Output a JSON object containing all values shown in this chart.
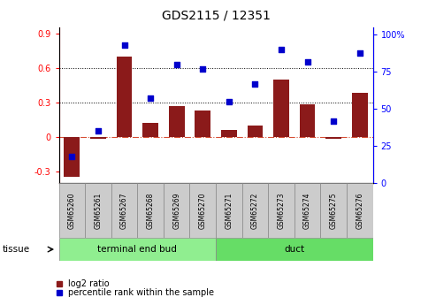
{
  "title": "GDS2115 / 12351",
  "samples": [
    "GSM65260",
    "GSM65261",
    "GSM65267",
    "GSM65268",
    "GSM65269",
    "GSM65270",
    "GSM65271",
    "GSM65272",
    "GSM65273",
    "GSM65274",
    "GSM65275",
    "GSM65276"
  ],
  "log2_ratio": [
    -0.35,
    -0.02,
    0.7,
    0.12,
    0.27,
    0.23,
    0.06,
    0.1,
    0.5,
    0.28,
    -0.02,
    0.38
  ],
  "percentile_rank": [
    18,
    35,
    93,
    57,
    80,
    77,
    55,
    67,
    90,
    82,
    42,
    88
  ],
  "tissue_groups": [
    {
      "label": "terminal end bud",
      "start": 0,
      "end": 6,
      "color": "#90EE90"
    },
    {
      "label": "duct",
      "start": 6,
      "end": 12,
      "color": "#66DD66"
    }
  ],
  "bar_color": "#8B1A1A",
  "dot_color": "#0000CC",
  "left_ylim": [
    -0.4,
    0.95
  ],
  "right_ylim": [
    0,
    105
  ],
  "left_yticks": [
    -0.3,
    0.0,
    0.3,
    0.6,
    0.9
  ],
  "right_yticks": [
    0,
    25,
    50,
    75,
    100
  ],
  "left_ytick_labels": [
    "-0.3",
    "0",
    "0.3",
    "0.6",
    "0.9"
  ],
  "right_ytick_labels": [
    "0",
    "25",
    "50",
    "75",
    "100%"
  ],
  "hline_y": 0.0,
  "dotted_lines": [
    0.3,
    0.6
  ],
  "tissue_label": "tissue",
  "legend_bar_label": "log2 ratio",
  "legend_dot_label": "percentile rank within the sample",
  "label_bg": "#CCCCCC",
  "fig_width": 4.93,
  "fig_height": 3.45,
  "dpi": 100
}
